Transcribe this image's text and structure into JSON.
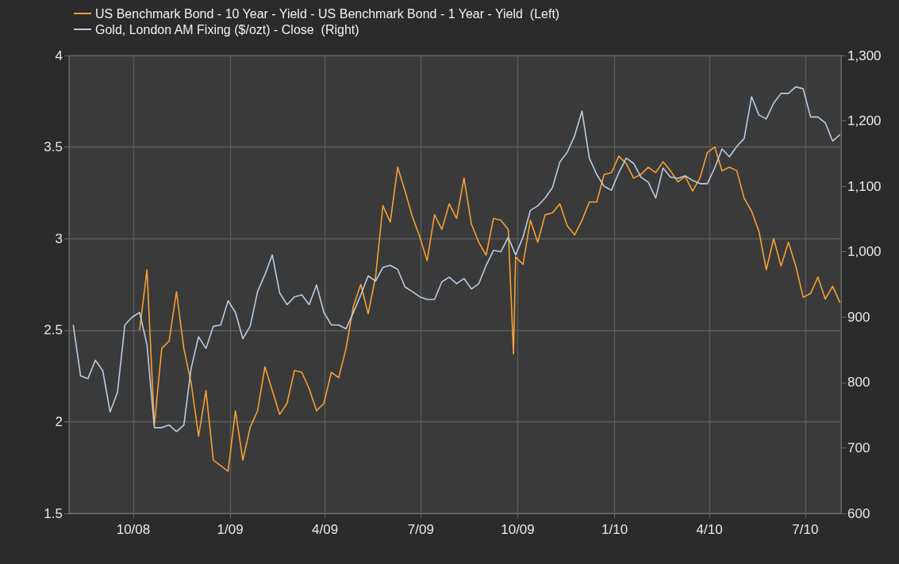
{
  "chart_data": {
    "type": "line",
    "x": [
      "2008-08-05",
      "2008-08-12",
      "2008-08-19",
      "2008-08-26",
      "2008-09-02",
      "2008-09-09",
      "2008-09-16",
      "2008-09-23",
      "2008-09-30",
      "2008-10-07",
      "2008-10-14",
      "2008-10-21",
      "2008-10-28",
      "2008-11-04",
      "2008-11-11",
      "2008-11-18",
      "2008-11-25",
      "2008-12-02",
      "2008-12-09",
      "2008-12-16",
      "2008-12-23",
      "2008-12-30",
      "2009-01-06",
      "2009-01-13",
      "2009-01-20",
      "2009-01-27",
      "2009-02-03",
      "2009-02-10",
      "2009-02-17",
      "2009-02-24",
      "2009-03-03",
      "2009-03-10",
      "2009-03-17",
      "2009-03-24",
      "2009-03-31",
      "2009-04-07",
      "2009-04-14",
      "2009-04-21",
      "2009-04-28",
      "2009-05-05",
      "2009-05-12",
      "2009-05-19",
      "2009-05-26",
      "2009-06-02",
      "2009-06-09",
      "2009-06-16",
      "2009-06-23",
      "2009-06-30",
      "2009-07-07",
      "2009-07-14",
      "2009-07-21",
      "2009-07-28",
      "2009-08-04",
      "2009-08-11",
      "2009-08-18",
      "2009-08-25",
      "2009-09-01",
      "2009-09-08",
      "2009-09-15",
      "2009-09-22",
      "2009-09-29",
      "2009-10-06",
      "2009-10-13",
      "2009-10-20",
      "2009-10-27",
      "2009-11-03",
      "2009-11-10",
      "2009-11-17",
      "2009-11-24",
      "2009-12-01",
      "2009-12-08",
      "2009-12-15",
      "2009-12-22",
      "2009-12-29",
      "2010-01-05",
      "2010-01-12",
      "2010-01-19",
      "2010-01-26",
      "2010-02-02",
      "2010-02-09",
      "2010-02-16",
      "2010-02-23",
      "2010-03-02",
      "2010-03-09",
      "2010-03-16",
      "2010-03-23",
      "2010-03-30",
      "2010-04-06",
      "2010-04-13",
      "2010-04-20",
      "2010-04-27",
      "2010-05-04",
      "2010-05-11",
      "2010-05-18",
      "2010-05-25",
      "2010-06-01",
      "2010-06-08",
      "2010-06-15",
      "2010-06-22",
      "2010-06-29",
      "2010-07-06",
      "2010-07-13",
      "2010-07-20",
      "2010-07-27",
      "2010-08-03"
    ],
    "series": [
      {
        "name": "US Benchmark Bond - 10 Year - Yield - US Benchmark Bond - 1 Year - Yield  (Left)",
        "color": "#f7a035",
        "x": [
          "2008-10-07",
          "2008-10-14",
          "2008-10-21",
          "2008-10-28",
          "2008-11-04",
          "2008-11-11",
          "2008-11-18",
          "2008-11-25",
          "2008-12-02",
          "2008-12-09",
          "2008-12-16",
          "2008-12-23",
          "2008-12-30",
          "2009-01-06",
          "2009-01-13",
          "2009-01-20",
          "2009-01-27",
          "2009-02-03",
          "2009-02-10",
          "2009-02-17",
          "2009-02-24",
          "2009-03-03",
          "2009-03-10",
          "2009-03-17",
          "2009-03-24",
          "2009-03-31",
          "2009-04-07",
          "2009-04-14",
          "2009-04-21",
          "2009-04-28",
          "2009-05-05",
          "2009-05-12",
          "2009-05-19",
          "2009-05-26",
          "2009-06-02",
          "2009-06-09",
          "2009-06-16",
          "2009-06-23",
          "2009-06-30",
          "2009-07-07",
          "2009-07-14",
          "2009-07-21",
          "2009-07-28",
          "2009-08-04",
          "2009-08-11",
          "2009-08-18",
          "2009-08-25",
          "2009-09-01",
          "2009-09-08",
          "2009-09-15",
          "2009-09-22",
          "2009-09-27",
          "2009-09-29",
          "2009-10-06",
          "2009-10-13",
          "2009-10-20",
          "2009-10-27",
          "2009-11-03",
          "2009-11-10",
          "2009-11-17",
          "2009-11-24",
          "2009-12-01",
          "2009-12-08",
          "2009-12-15",
          "2009-12-22",
          "2009-12-29",
          "2010-01-05",
          "2010-01-12",
          "2010-01-19",
          "2010-01-26",
          "2010-02-02",
          "2010-02-09",
          "2010-02-16",
          "2010-02-23",
          "2010-03-02",
          "2010-03-09",
          "2010-03-16",
          "2010-03-23",
          "2010-03-30",
          "2010-04-06",
          "2010-04-13",
          "2010-04-20",
          "2010-04-27",
          "2010-05-04",
          "2010-05-11",
          "2010-05-18",
          "2010-05-25",
          "2010-06-01",
          "2010-06-08",
          "2010-06-15",
          "2010-06-22",
          "2010-06-29",
          "2010-07-06",
          "2010-07-13",
          "2010-07-20",
          "2010-07-27",
          "2010-08-03"
        ],
        "values": [
          2.5,
          2.83,
          1.98,
          2.4,
          2.44,
          2.71,
          2.4,
          2.21,
          1.92,
          2.17,
          1.79,
          1.76,
          1.73,
          2.06,
          1.79,
          1.97,
          2.06,
          2.3,
          2.17,
          2.04,
          2.1,
          2.28,
          2.27,
          2.18,
          2.06,
          2.1,
          2.27,
          2.24,
          2.4,
          2.63,
          2.75,
          2.59,
          2.79,
          3.18,
          3.09,
          3.39,
          3.26,
          3.12,
          3.01,
          2.88,
          3.13,
          3.05,
          3.19,
          3.11,
          3.33,
          3.08,
          2.98,
          2.91,
          3.11,
          3.1,
          3.05,
          2.37,
          2.9,
          2.86,
          3.1,
          2.98,
          3.13,
          3.14,
          3.19,
          3.07,
          3.02,
          3.1,
          3.2,
          3.2,
          3.35,
          3.36,
          3.45,
          3.41,
          3.33,
          3.35,
          3.39,
          3.36,
          3.42,
          3.37,
          3.31,
          3.34,
          3.26,
          3.33,
          3.47,
          3.5,
          3.37,
          3.39,
          3.37,
          3.22,
          3.15,
          3.04,
          2.83,
          3.0,
          2.85,
          2.98,
          2.85,
          2.68,
          2.7,
          2.79,
          2.67,
          2.74,
          2.65
        ]
      },
      {
        "name": "Gold, London AM Fixing ($/ozt) - Close  (Right)",
        "color": "#b8cce4",
        "axis": "y2",
        "values": [
          888,
          810,
          806,
          834,
          818,
          755,
          785,
          888,
          900,
          907,
          858,
          731,
          731,
          735,
          725,
          735,
          822,
          870,
          852,
          886,
          888,
          925,
          907,
          867,
          886,
          939,
          965,
          995,
          937,
          919,
          931,
          934,
          919,
          949,
          907,
          888,
          888,
          882,
          907,
          934,
          963,
          955,
          976,
          979,
          973,
          946,
          939,
          931,
          927,
          927,
          954,
          961,
          951,
          959,
          943,
          951,
          979,
          1002,
          1000,
          1022,
          995,
          1022,
          1063,
          1070,
          1082,
          1098,
          1137,
          1152,
          1177,
          1215,
          1143,
          1118,
          1100,
          1094,
          1121,
          1143,
          1135,
          1114,
          1106,
          1082,
          1128,
          1114,
          1112,
          1116,
          1109,
          1104,
          1104,
          1128,
          1157,
          1145,
          1161,
          1173,
          1237,
          1209,
          1203,
          1227,
          1242,
          1242,
          1252,
          1249,
          1206,
          1206,
          1197,
          1169,
          1179
        ]
      }
    ],
    "xlim": [
      "2008-08-01",
      "2010-08-04"
    ],
    "xticks": [
      {
        "value": "2008-10-01",
        "label": "10/08"
      },
      {
        "value": "2009-01-01",
        "label": "1/09"
      },
      {
        "value": "2009-04-01",
        "label": "4/09"
      },
      {
        "value": "2009-07-01",
        "label": "7/09"
      },
      {
        "value": "2009-10-01",
        "label": "10/09"
      },
      {
        "value": "2010-01-01",
        "label": "1/10"
      },
      {
        "value": "2010-04-01",
        "label": "4/10"
      },
      {
        "value": "2010-07-01",
        "label": "7/10"
      }
    ],
    "ylim": [
      1.5,
      4
    ],
    "yticks": [
      1.5,
      2,
      2.5,
      3,
      3.5,
      4
    ],
    "y2lim": [
      600,
      1300
    ],
    "y2ticks": [
      600,
      700,
      800,
      900,
      {
        "value": 1000,
        "label": "1,000"
      },
      {
        "value": 1100,
        "label": "1,100"
      },
      {
        "value": 1200,
        "label": "1,200"
      },
      {
        "value": 1300,
        "label": "1,300"
      }
    ],
    "grid": true,
    "legend": "top left",
    "line_style": "solid"
  }
}
